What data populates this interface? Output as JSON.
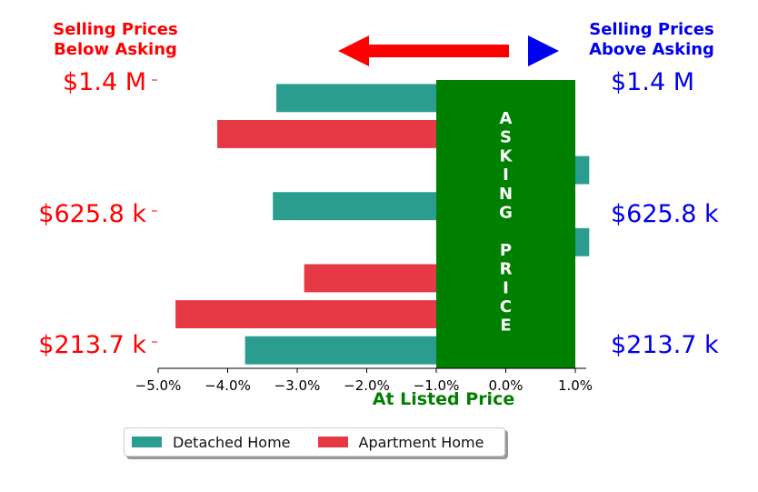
{
  "chart_data": {
    "type": "bar",
    "orientation": "horizontal",
    "title_left": [
      "Selling Prices",
      "Below Asking"
    ],
    "title_right": [
      "Selling Prices",
      "Above Asking"
    ],
    "xlabel": "At Listed Price",
    "xlim": [
      -5.3,
      1.5
    ],
    "x_ticks": [
      -5,
      -4,
      -3,
      -2,
      -1,
      0,
      1
    ],
    "x_tick_labels": [
      "−5.0%",
      "−4.0%",
      "−3.0%",
      "−2.0%",
      "−1.0%",
      "0.0%",
      "1.0%"
    ],
    "y_tick_labels_left": [
      "$1.4 M",
      "$625.8 k",
      "$213.7 k"
    ],
    "y_tick_labels_right": [
      "$1.4 M",
      "$625.8 k",
      "$213.7 k"
    ],
    "band_label": "ASKING PRICE",
    "band_range": [
      -1.0,
      1.0
    ],
    "bars": [
      {
        "series": "Detached Home",
        "value": -3.3
      },
      {
        "series": "Apartment Home",
        "value": -4.15
      },
      {
        "series": "Detached Home",
        "value": 1.2
      },
      {
        "series": "Detached Home",
        "value": -3.35
      },
      {
        "series": "Detached Home",
        "value": 1.2
      },
      {
        "series": "Apartment Home",
        "value": -2.9
      },
      {
        "series": "Apartment Home",
        "value": -4.75
      },
      {
        "series": "Detached Home",
        "value": -3.75
      }
    ],
    "series": [
      {
        "name": "Detached Home",
        "color": "#2a9d8f"
      },
      {
        "name": "Apartment Home",
        "color": "#e63946"
      }
    ],
    "legend_position": "bottom-left",
    "colors": {
      "below": "#ff0000",
      "above": "#0000ee",
      "band": "#008000",
      "xlabel": "#008000"
    }
  }
}
